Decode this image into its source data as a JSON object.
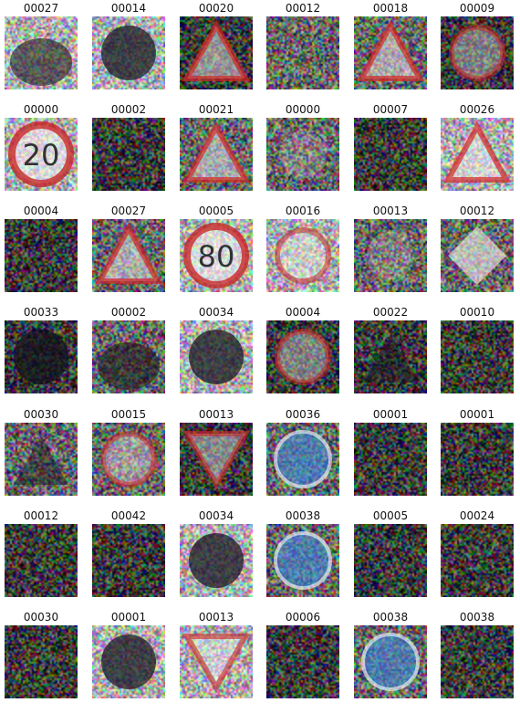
{
  "grid": {
    "rows": [
      [
        {
          "label": "00027",
          "subject": "dark-sign",
          "brightness": "light"
        },
        {
          "label": "00014",
          "subject": "circle-dark-sign",
          "brightness": "light"
        },
        {
          "label": "00020",
          "subject": "triangle-sign",
          "brightness": "dark"
        },
        {
          "label": "00012",
          "subject": "noise",
          "brightness": "medium"
        },
        {
          "label": "00018",
          "subject": "triangle-sign",
          "brightness": "medium"
        },
        {
          "label": "00009",
          "subject": "circle-sign",
          "brightness": "dark"
        }
      ],
      [
        {
          "label": "00000",
          "subject": "speed-limit-sign",
          "sign_text": "20",
          "brightness": "light"
        },
        {
          "label": "00002",
          "subject": "noise",
          "brightness": "dark"
        },
        {
          "label": "00021",
          "subject": "triangle-warning-sign",
          "brightness": "medium"
        },
        {
          "label": "00000",
          "subject": "faint-sign",
          "brightness": "medium"
        },
        {
          "label": "00007",
          "subject": "noise",
          "brightness": "dark"
        },
        {
          "label": "00026",
          "subject": "triangle-warning-sign",
          "brightness": "light"
        }
      ],
      [
        {
          "label": "00004",
          "subject": "noise",
          "brightness": "dark"
        },
        {
          "label": "00027",
          "subject": "triangle-warning-sign",
          "brightness": "medium"
        },
        {
          "label": "00005",
          "subject": "speed-limit-sign",
          "sign_text": "80",
          "brightness": "light"
        },
        {
          "label": "00016",
          "subject": "circle-sign",
          "brightness": "light"
        },
        {
          "label": "00013",
          "subject": "faint-sign",
          "brightness": "medium"
        },
        {
          "label": "00012",
          "subject": "diamond-sign",
          "brightness": "medium"
        }
      ],
      [
        {
          "label": "00033",
          "subject": "dark-circle",
          "brightness": "dark"
        },
        {
          "label": "00002",
          "subject": "dark-sign",
          "brightness": "medium"
        },
        {
          "label": "00034",
          "subject": "dark-circle",
          "brightness": "light"
        },
        {
          "label": "00004",
          "subject": "circle-sign",
          "brightness": "dark"
        },
        {
          "label": "00022",
          "subject": "faint-triangle",
          "brightness": "dark"
        },
        {
          "label": "00010",
          "subject": "noise",
          "brightness": "dark"
        }
      ],
      [
        {
          "label": "00030",
          "subject": "dark-triangle",
          "brightness": "medium"
        },
        {
          "label": "00015",
          "subject": "circle-sign",
          "brightness": "medium"
        },
        {
          "label": "00013",
          "subject": "yield-sign",
          "brightness": "dark"
        },
        {
          "label": "00036",
          "subject": "blue-sign",
          "brightness": "medium"
        },
        {
          "label": "00001",
          "subject": "noise",
          "brightness": "dark"
        },
        {
          "label": "00001",
          "subject": "noise",
          "brightness": "dark"
        }
      ],
      [
        {
          "label": "00012",
          "subject": "noise",
          "brightness": "dark"
        },
        {
          "label": "00042",
          "subject": "noise",
          "brightness": "dark"
        },
        {
          "label": "00034",
          "subject": "dark-circle",
          "brightness": "light"
        },
        {
          "label": "00038",
          "subject": "blue-circle-sign",
          "brightness": "medium"
        },
        {
          "label": "00005",
          "subject": "noise",
          "brightness": "dark"
        },
        {
          "label": "00024",
          "subject": "noise",
          "brightness": "dark"
        }
      ],
      [
        {
          "label": "00030",
          "subject": "noise",
          "brightness": "dark"
        },
        {
          "label": "00001",
          "subject": "circle-dark-sign",
          "brightness": "light"
        },
        {
          "label": "00013",
          "subject": "yield-sign",
          "brightness": "light"
        },
        {
          "label": "00006",
          "subject": "noise",
          "brightness": "dark"
        },
        {
          "label": "00038",
          "subject": "blue-circle-sign",
          "brightness": "medium"
        },
        {
          "label": "00038",
          "subject": "noise",
          "brightness": "dark"
        }
      ]
    ]
  }
}
